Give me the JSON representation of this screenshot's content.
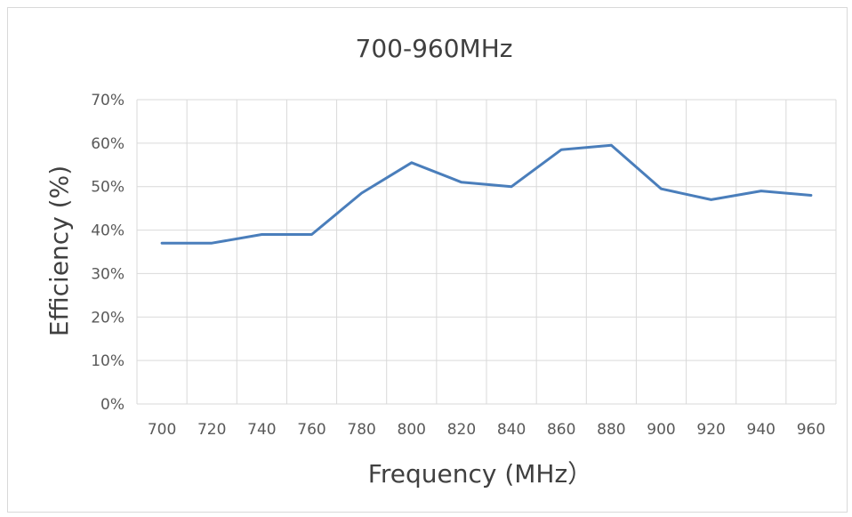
{
  "chart_data": {
    "type": "line",
    "title": "700-960MHz",
    "xlabel": "Frequency (MHz）",
    "ylabel": "Efficiency (%)",
    "x": [
      700,
      720,
      740,
      760,
      780,
      800,
      820,
      840,
      860,
      880,
      900,
      920,
      940,
      960
    ],
    "x_tick_labels": [
      "700",
      "720",
      "740",
      "760",
      "780",
      "800",
      "820",
      "840",
      "860",
      "880",
      "900",
      "920",
      "940",
      "960"
    ],
    "series": [
      {
        "values": [
          37,
          37,
          39,
          39,
          48.5,
          55.5,
          51,
          50,
          58.5,
          59.5,
          49.5,
          47,
          49,
          48
        ],
        "color": "#4a7ebb"
      }
    ],
    "ylim": [
      0,
      70
    ],
    "y_ticks": [
      0,
      10,
      20,
      30,
      40,
      50,
      60,
      70
    ],
    "y_tick_labels": [
      "0%",
      "10%",
      "20%",
      "30%",
      "40%",
      "50%",
      "60%",
      "70%"
    ],
    "grid": true,
    "legend": "none",
    "gridline_color": "#d9d9d9"
  }
}
